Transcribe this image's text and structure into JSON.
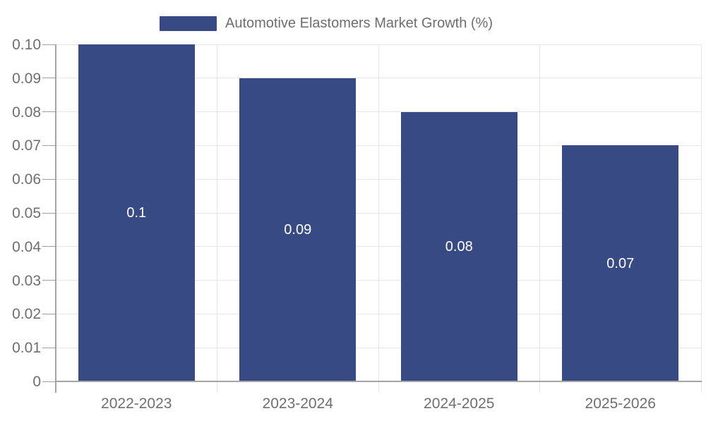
{
  "chart_data": {
    "type": "bar",
    "title": "Automotive Elastomers Market Growth (%)",
    "legend_label": "Automotive Elastomers Market Growth (%)",
    "legend_position": "top",
    "categories": [
      "2022-2023",
      "2023-2024",
      "2024-2025",
      "2025-2026"
    ],
    "values": [
      0.1,
      0.09,
      0.08,
      0.07
    ],
    "value_labels": [
      "0.1",
      "0.09",
      "0.08",
      "0.07"
    ],
    "xlabel": "",
    "ylabel": "",
    "ylim": [
      0,
      0.1
    ],
    "ytick_step": 0.01,
    "ytick_labels": [
      "0",
      "0.01",
      "0.02",
      "0.03",
      "0.04",
      "0.05",
      "0.06",
      "0.07",
      "0.08",
      "0.09",
      "0.10"
    ],
    "grid": "both",
    "colors": {
      "bar": "#384a84",
      "grid_line": "#e4e4e4",
      "axis_line": "#a4a4a4",
      "tick_mark": "#9e9e9e",
      "tick_label": "#6f6f6f",
      "legend_text": "#6e6e6e",
      "value_text": "#ffffff",
      "background": "#ffffff"
    }
  }
}
